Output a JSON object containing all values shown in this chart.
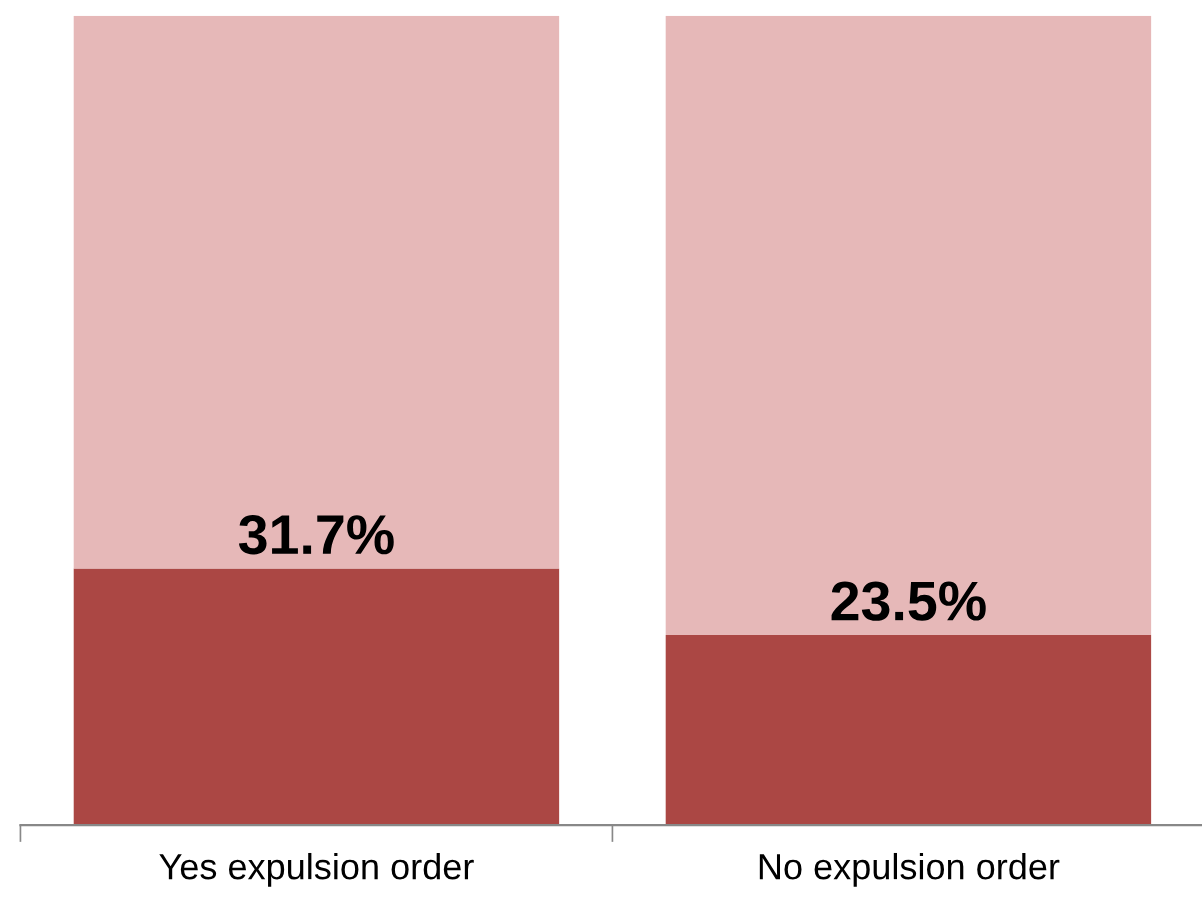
{
  "chart_data": {
    "type": "bar",
    "stacked": true,
    "categories": [
      "Yes expulsion order",
      "No expulsion order"
    ],
    "series": [
      {
        "color": "#ab4744",
        "values": [
          31.7,
          23.5
        ],
        "value_labels": [
          "31.7%",
          "23.5%"
        ]
      },
      {
        "color": "#e6b8b8",
        "values": [
          68.3,
          76.5
        ]
      }
    ],
    "ylim": [
      0,
      100
    ],
    "grid": false,
    "legend": false
  }
}
